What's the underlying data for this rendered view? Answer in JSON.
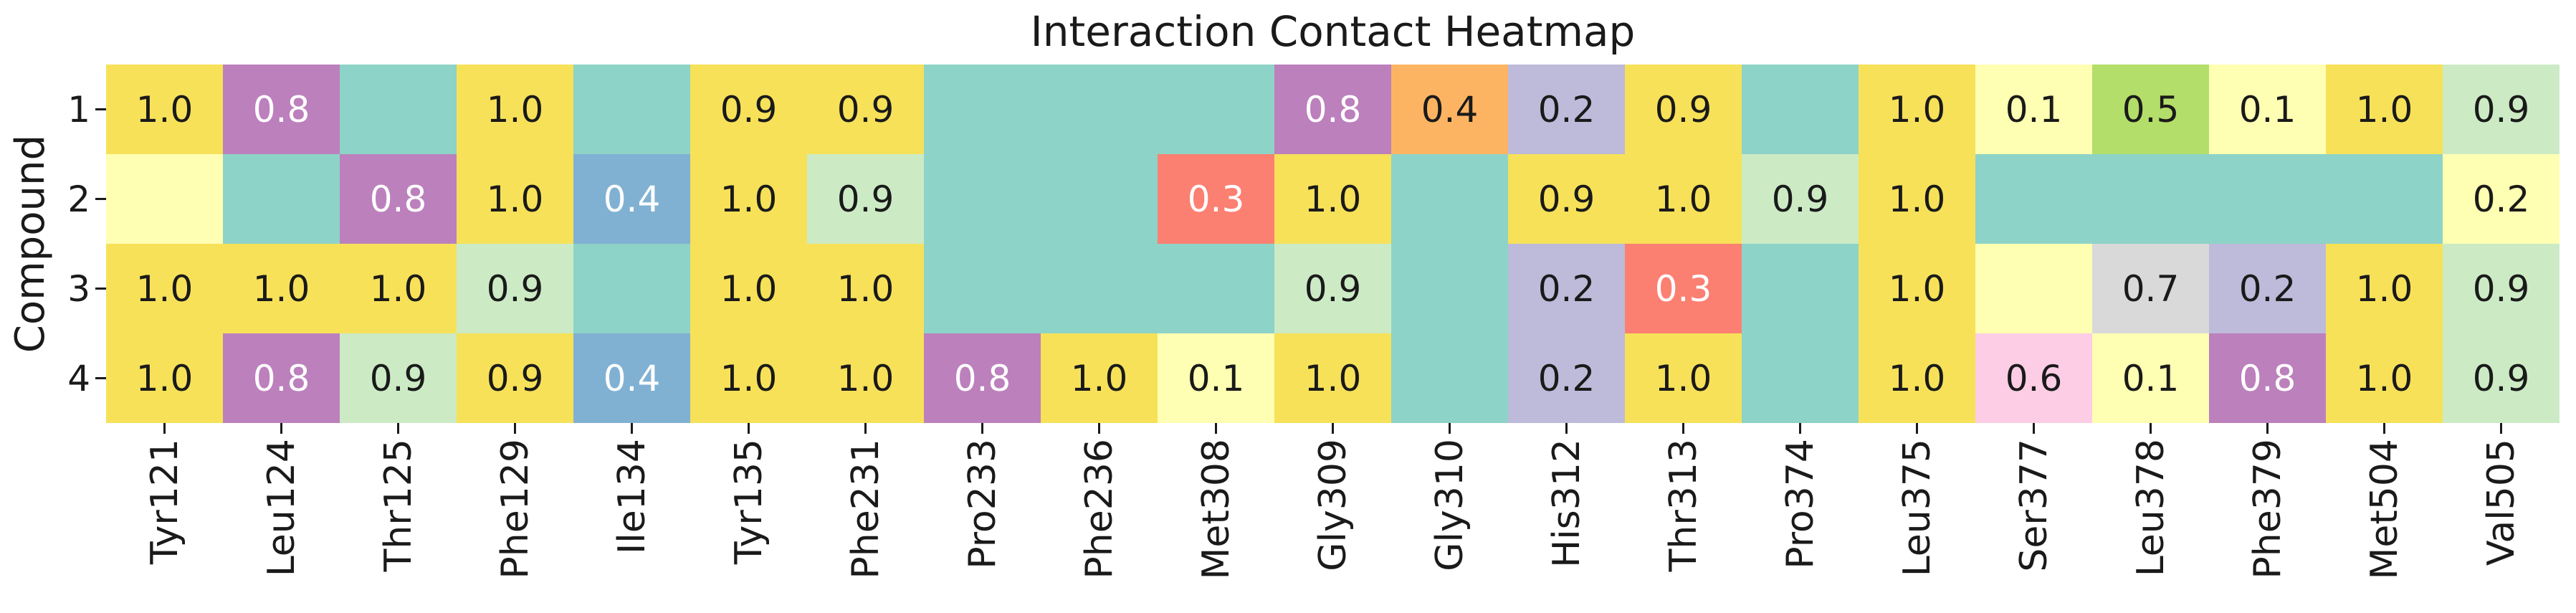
{
  "title": "Interaction Contact Heatmap",
  "axes": {
    "ylabel": "Compound",
    "xlabel": "",
    "text_color": "#1a1a1a"
  },
  "chart_data": {
    "type": "heatmap",
    "title": "Interaction Contact Heatmap",
    "xlabel": "",
    "ylabel": "Compound",
    "colormap": "Set3",
    "legend": "none",
    "grid": false,
    "annotation_format": "one-decimal",
    "columns": [
      "Tyr121",
      "Leu124",
      "Thr125",
      "Phe129",
      "Ile134",
      "Tyr135",
      "Phe231",
      "Pro233",
      "Phe236",
      "Met308",
      "Gly309",
      "Gly310",
      "His312",
      "Thr313",
      "Pro374",
      "Leu375",
      "Ser377",
      "Leu378",
      "Phe379",
      "Met504",
      "Val505"
    ],
    "rows": [
      "1",
      "2",
      "3",
      "4"
    ],
    "values": [
      [
        1.0,
        0.8,
        null,
        1.0,
        null,
        0.9,
        0.9,
        null,
        null,
        null,
        0.8,
        0.4,
        0.2,
        0.9,
        null,
        1.0,
        0.1,
        0.5,
        0.1,
        1.0,
        0.9
      ],
      [
        null,
        null,
        0.8,
        1.0,
        0.4,
        1.0,
        0.9,
        null,
        null,
        0.3,
        1.0,
        null,
        0.9,
        1.0,
        0.9,
        1.0,
        null,
        null,
        null,
        null,
        0.2
      ],
      [
        1.0,
        1.0,
        1.0,
        0.9,
        null,
        1.0,
        1.0,
        null,
        null,
        null,
        0.9,
        null,
        0.2,
        0.3,
        null,
        1.0,
        null,
        0.7,
        0.2,
        1.0,
        0.9
      ],
      [
        1.0,
        0.8,
        0.9,
        0.9,
        0.4,
        1.0,
        1.0,
        0.8,
        1.0,
        0.1,
        1.0,
        null,
        0.2,
        1.0,
        null,
        1.0,
        0.6,
        0.1,
        0.8,
        1.0,
        0.9
      ]
    ],
    "cell_colors": [
      [
        "yellow",
        "purple",
        "teal",
        "yellow",
        "teal",
        "yellow",
        "yellow",
        "teal",
        "teal",
        "teal",
        "purple",
        "orange",
        "lavender",
        "yellow",
        "teal",
        "yellow",
        "pale_yellow",
        "green",
        "pale_yellow",
        "yellow",
        "light_green"
      ],
      [
        "pale_yellow",
        "teal",
        "purple",
        "yellow",
        "blue",
        "yellow",
        "light_green",
        "teal",
        "teal",
        "red",
        "yellow",
        "teal",
        "yellow",
        "yellow",
        "light_green",
        "yellow",
        "teal",
        "teal",
        "teal",
        "teal",
        "pale_yellow"
      ],
      [
        "yellow",
        "yellow",
        "yellow",
        "light_green",
        "teal",
        "yellow",
        "yellow",
        "teal",
        "teal",
        "teal",
        "light_green",
        "teal",
        "lavender",
        "red",
        "teal",
        "yellow",
        "pale_yellow",
        "grey",
        "lavender",
        "yellow",
        "light_green"
      ],
      [
        "yellow",
        "purple",
        "light_green",
        "yellow",
        "blue",
        "yellow",
        "yellow",
        "purple",
        "yellow",
        "pale_yellow",
        "yellow",
        "teal",
        "lavender",
        "yellow",
        "teal",
        "yellow",
        "pink",
        "pale_yellow",
        "purple",
        "yellow",
        "light_green"
      ]
    ],
    "palette": {
      "teal": "#8dd3c7",
      "pale_yellow": "#ffffb3",
      "lavender": "#bebada",
      "red": "#fb8072",
      "blue": "#80b1d3",
      "orange": "#fdb462",
      "green": "#b3de69",
      "pink": "#fccde5",
      "grey": "#d9d9d9",
      "purple": "#bc80bd",
      "light_green": "#ccebc5",
      "yellow": "#f7e159"
    },
    "white_text_on": [
      "purple",
      "red",
      "blue"
    ],
    "annotation_dark_color": "#1a1a1a",
    "annotation_light_color": "#ffffff"
  }
}
